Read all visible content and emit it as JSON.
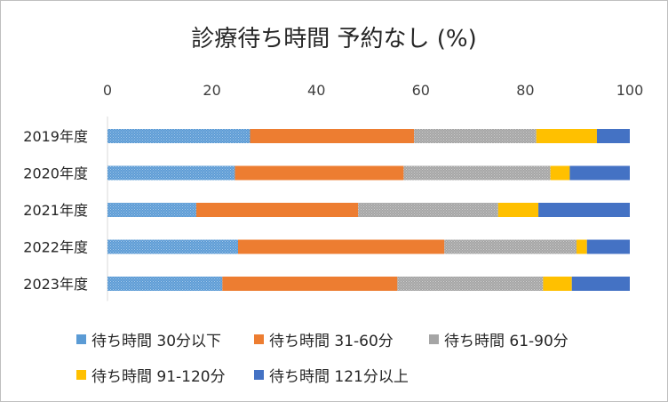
{
  "chart_data": {
    "type": "bar",
    "orientation": "horizontal",
    "stacked": true,
    "title": "診療待ち時間 予約なし (%)",
    "categories": [
      "2019年度",
      "2020年度",
      "2021年度",
      "2022年度",
      "2023年度"
    ],
    "series": [
      {
        "name": "待ち時間 30分以下",
        "color": "#5B9BD5",
        "pattern": "dots",
        "values": [
          27.3,
          24.4,
          17.0,
          25.0,
          22.0
        ]
      },
      {
        "name": "待ち時間 31-60分",
        "color": "#ED7D31",
        "pattern": "none",
        "values": [
          31.4,
          32.3,
          31.0,
          39.5,
          33.5
        ]
      },
      {
        "name": "待ち時間 61-90分",
        "color": "#A5A5A5",
        "pattern": "dots",
        "values": [
          23.4,
          28.1,
          26.8,
          25.3,
          27.9
        ]
      },
      {
        "name": "待ち時間 91-120分",
        "color": "#FFC000",
        "pattern": "none",
        "values": [
          11.6,
          3.7,
          7.7,
          2.0,
          5.5
        ]
      },
      {
        "name": "待ち時間 121分以上",
        "color": "#4472C4",
        "pattern": "none",
        "values": [
          6.3,
          11.5,
          17.5,
          8.2,
          11.1
        ]
      }
    ],
    "xlim": [
      0,
      100
    ],
    "xticks": [
      0,
      20,
      40,
      60,
      80,
      100
    ],
    "x_axis_position": "top",
    "grid": false,
    "legend_position": "bottom"
  }
}
